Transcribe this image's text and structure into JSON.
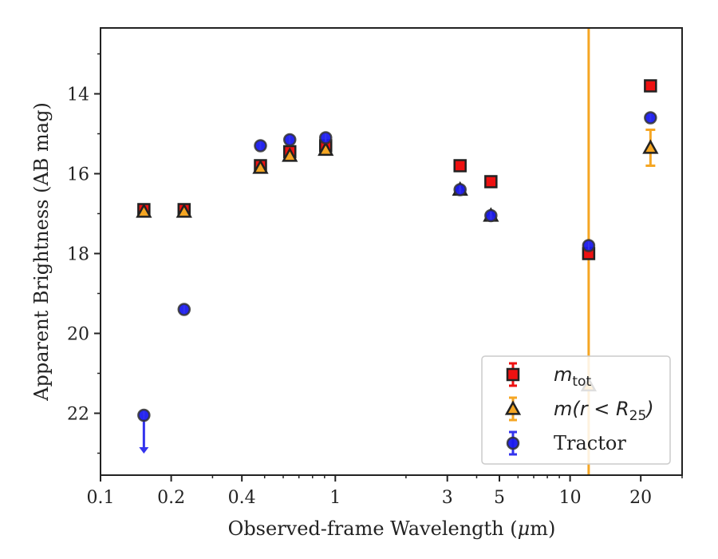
{
  "chart_data": {
    "type": "scatter",
    "xscale": "log",
    "xlim": [
      0.1,
      30
    ],
    "ylim": [
      12.35,
      23.55
    ],
    "y_inverted": true,
    "xlabel_prefix": "Observed-frame Wavelength (",
    "xlabel_mu": "μ",
    "xlabel_suffix": "m)",
    "ylabel": "Apparent Brightness (AB mag)",
    "x_ticks": [
      {
        "value": 0.1,
        "label": "0.1"
      },
      {
        "value": 0.2,
        "label": "0.2"
      },
      {
        "value": 0.4,
        "label": "0.4"
      },
      {
        "value": 1,
        "label": "1"
      },
      {
        "value": 3,
        "label": "3"
      },
      {
        "value": 5,
        "label": "5"
      },
      {
        "value": 10,
        "label": "10"
      },
      {
        "value": 20,
        "label": "20"
      }
    ],
    "y_ticks": [
      14,
      16,
      18,
      20,
      22
    ],
    "vline": {
      "x": 12.0,
      "color": "#f5a623"
    },
    "legend_position": "lower right",
    "series": [
      {
        "name": "m_tot",
        "label_main": "m",
        "label_sub": "tot",
        "marker": "square",
        "color": "#ee1111",
        "errcolor": "#ee1111",
        "points": [
          {
            "x": 0.153,
            "y": 16.9
          },
          {
            "x": 0.227,
            "y": 16.9
          },
          {
            "x": 0.48,
            "y": 15.8
          },
          {
            "x": 0.64,
            "y": 15.45
          },
          {
            "x": 0.91,
            "y": 15.3
          },
          {
            "x": 3.4,
            "y": 15.8
          },
          {
            "x": 4.6,
            "y": 16.2
          },
          {
            "x": 12.0,
            "y": 18.0
          },
          {
            "x": 22.0,
            "y": 13.8
          }
        ]
      },
      {
        "name": "m(r<R25)",
        "label_main": "m(r < R",
        "label_sub": "25",
        "label_tail": ")",
        "marker": "triangle",
        "color": "#f5a623",
        "errcolor": "#f5a623",
        "points": [
          {
            "x": 0.153,
            "y": 16.95
          },
          {
            "x": 0.227,
            "y": 16.95
          },
          {
            "x": 0.48,
            "y": 15.85
          },
          {
            "x": 0.64,
            "y": 15.55
          },
          {
            "x": 0.91,
            "y": 15.4
          },
          {
            "x": 3.4,
            "y": 16.4
          },
          {
            "x": 4.6,
            "y": 17.05
          },
          {
            "x": 12.0,
            "y": 21.3
          },
          {
            "x": 22.0,
            "y": 15.35,
            "err": 0.45
          }
        ]
      },
      {
        "name": "Tractor",
        "label_main": "Tractor",
        "marker": "circle",
        "color": "#1a1aee",
        "errcolor": "#3333ee",
        "points": [
          {
            "x": 0.153,
            "y": 22.05,
            "upper_limit": true
          },
          {
            "x": 0.227,
            "y": 19.4
          },
          {
            "x": 0.48,
            "y": 15.3
          },
          {
            "x": 0.64,
            "y": 15.15
          },
          {
            "x": 0.91,
            "y": 15.1
          },
          {
            "x": 3.4,
            "y": 16.4
          },
          {
            "x": 4.6,
            "y": 17.05
          },
          {
            "x": 12.0,
            "y": 17.8
          },
          {
            "x": 22.0,
            "y": 14.6
          }
        ]
      }
    ]
  }
}
